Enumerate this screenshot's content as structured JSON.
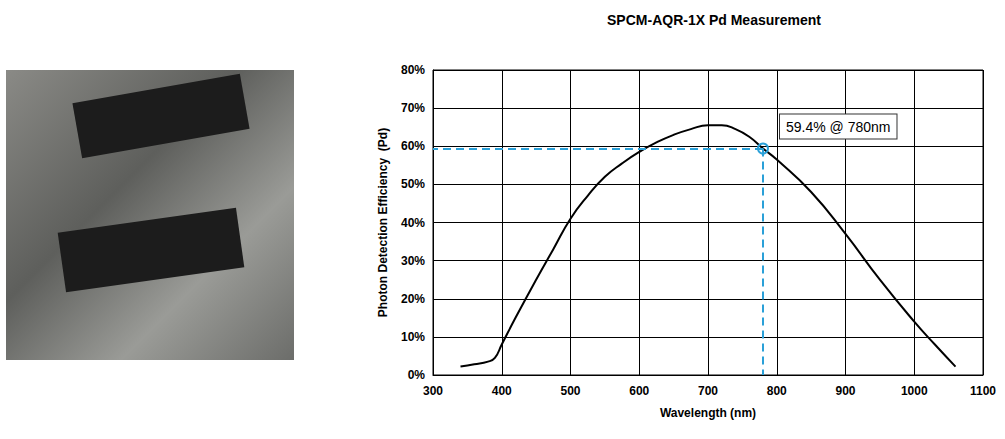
{
  "chart_data": {
    "type": "line",
    "title": "SPCM-AQR-1X Pd Measurement",
    "x_label": "Wavelength (nm)",
    "y_label": "Photon Detection Efficiency  (Pd)",
    "x": [
      340,
      360,
      380,
      390,
      400,
      420,
      450,
      475,
      500,
      525,
      550,
      575,
      600,
      625,
      650,
      675,
      700,
      720,
      740,
      760,
      780,
      800,
      850,
      900,
      950,
      1000,
      1030,
      1060
    ],
    "values": [
      2.2,
      2.8,
      3.5,
      4.5,
      8,
      15,
      25,
      33,
      41,
      47,
      52,
      55.5,
      58.5,
      61,
      63,
      64.5,
      65.5,
      65.5,
      64.5,
      62.5,
      59.4,
      56.5,
      48,
      37,
      25,
      14,
      8,
      2.2
    ],
    "color": "#000000",
    "xlim": [
      300,
      1100
    ],
    "xticks": [
      300,
      400,
      500,
      600,
      700,
      800,
      900,
      1000,
      1100
    ],
    "ylim": [
      0,
      80
    ],
    "yticks": [
      {
        "value": 0,
        "label": "0%"
      },
      {
        "value": 10,
        "label": "10%"
      },
      {
        "value": 20,
        "label": "20%"
      },
      {
        "value": 30,
        "label": "30%"
      },
      {
        "value": 40,
        "label": "40%"
      },
      {
        "value": 50,
        "label": "50%"
      },
      {
        "value": 60,
        "label": "60%"
      },
      {
        "value": 70,
        "label": "70%"
      },
      {
        "value": 80,
        "label": "80%"
      }
    ],
    "grid": true,
    "annotations": [
      {
        "text": "59.4% @ 780nm",
        "x": 780,
        "y": 59.4,
        "color": "#2aa0d8"
      }
    ]
  }
}
